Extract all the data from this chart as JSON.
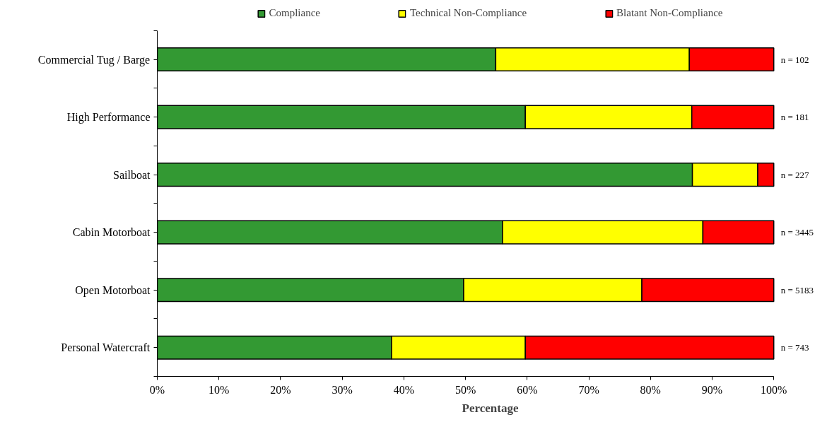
{
  "chart_data": {
    "type": "bar",
    "orientation": "horizontal",
    "stacked": true,
    "xlabel": "Percentage",
    "categories": [
      "Commercial Tug / Barge",
      "High Performance",
      "Sailboat",
      "Cabin Motorboat",
      "Open Motorboat",
      "Personal Watercraft"
    ],
    "series": [
      {
        "name": "Compliance",
        "color": "#339933",
        "values": [
          54.9,
          59.7,
          86.8,
          56.0,
          49.7,
          38.0
        ]
      },
      {
        "name": "Technical Non-Compliance",
        "color": "#ffff00",
        "values": [
          31.4,
          27.0,
          10.6,
          32.5,
          28.9,
          21.7
        ]
      },
      {
        "name": "Blatant Non-Compliance",
        "color": "#ff0000",
        "values": [
          13.7,
          13.3,
          2.6,
          11.5,
          21.4,
          40.3
        ]
      }
    ],
    "xlim": [
      0,
      100
    ],
    "xticks": [
      {
        "value": 0,
        "label": "0%"
      },
      {
        "value": 10,
        "label": "10%"
      },
      {
        "value": 20,
        "label": "20%"
      },
      {
        "value": 30,
        "label": "30%"
      },
      {
        "value": 40,
        "label": "40%"
      },
      {
        "value": 50,
        "label": "50%"
      },
      {
        "value": 60,
        "label": "60%"
      },
      {
        "value": 70,
        "label": "70%"
      },
      {
        "value": 80,
        "label": "80%"
      },
      {
        "value": 90,
        "label": "90%"
      },
      {
        "value": 100,
        "label": "100%"
      }
    ],
    "annotations": [
      "n = 102",
      "n = 181",
      "n = 227",
      "n = 3445",
      "n = 5183",
      "n = 743"
    ],
    "legend": "top",
    "grid": false
  }
}
